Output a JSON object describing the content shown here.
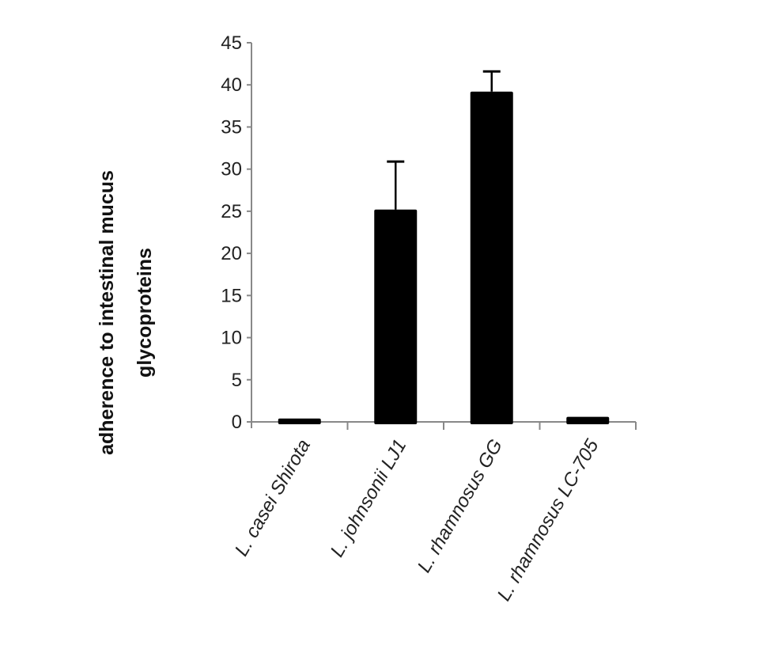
{
  "chart_data": {
    "type": "bar",
    "title": "",
    "xlabel": "",
    "ylabel_lines": [
      "adherence to intestinal mucus",
      "glycoproteins"
    ],
    "categories": [
      "L. casei Shirota",
      "L. johnsonii LJ1",
      "L. rhamnosus GG",
      "L. rhamnosus LC-705"
    ],
    "values": [
      0.4,
      25.2,
      39.2,
      0.6
    ],
    "error_upper": [
      null,
      30.9,
      41.6,
      null
    ],
    "ylim": [
      0,
      45
    ],
    "yticks": [
      0,
      5,
      10,
      15,
      20,
      25,
      30,
      35,
      40,
      45
    ],
    "grid": false,
    "bar_color": "#000000",
    "axis_color": "#888888"
  }
}
